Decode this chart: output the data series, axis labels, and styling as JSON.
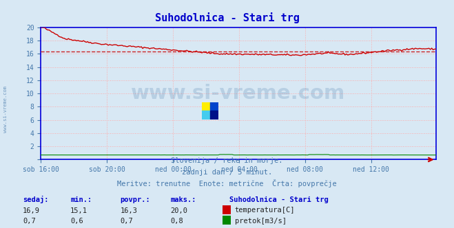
{
  "title": "Suhodolnica - Stari trg",
  "bg_color": "#d8e8f4",
  "plot_bg_color": "#d8e8f4",
  "grid_color": "#ffaaaa",
  "title_color": "#0000cc",
  "axis_color": "#4477aa",
  "watermark": "www.si-vreme.com",
  "subtitle_lines": [
    "Slovenija / reke in morje.",
    "zadnji dan / 5 minut.",
    "Meritve: trenutne  Enote: metrične  Črta: povprečje"
  ],
  "xlabel_ticks": [
    "sob 16:00",
    "sob 20:00",
    "ned 00:00",
    "ned 04:00",
    "ned 08:00",
    "ned 12:00"
  ],
  "ylim": [
    0,
    20
  ],
  "yticks": [
    0,
    2,
    4,
    6,
    8,
    10,
    12,
    14,
    16,
    18,
    20
  ],
  "temp_avg": 16.3,
  "temp_color": "#cc0000",
  "flow_color": "#008800",
  "table_headers": [
    "sedaj:",
    "min.:",
    "povpr.:",
    "maks.:"
  ],
  "table_values_temp": [
    "16,9",
    "15,1",
    "16,3",
    "20,0"
  ],
  "table_values_flow": [
    "0,7",
    "0,6",
    "0,7",
    "0,8"
  ],
  "legend_title": "Suhodolnica - Stari trg",
  "legend_temp": "temperatura[C]",
  "legend_flow": "pretok[m3/s]",
  "n_points": 288,
  "spine_color": "#0000dd",
  "arrow_color": "#cc0000"
}
